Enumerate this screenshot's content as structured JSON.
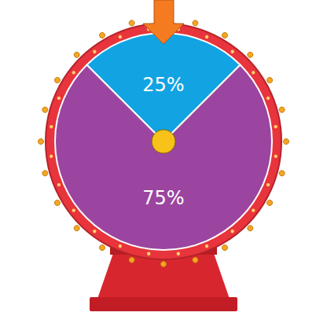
{
  "chart_data": {
    "type": "pie",
    "values": [
      25,
      75
    ],
    "value_labels": [
      "25%",
      "75%"
    ],
    "colors": [
      "#12a3e3",
      "#9b45a0"
    ],
    "data_labels": true
  }
}
